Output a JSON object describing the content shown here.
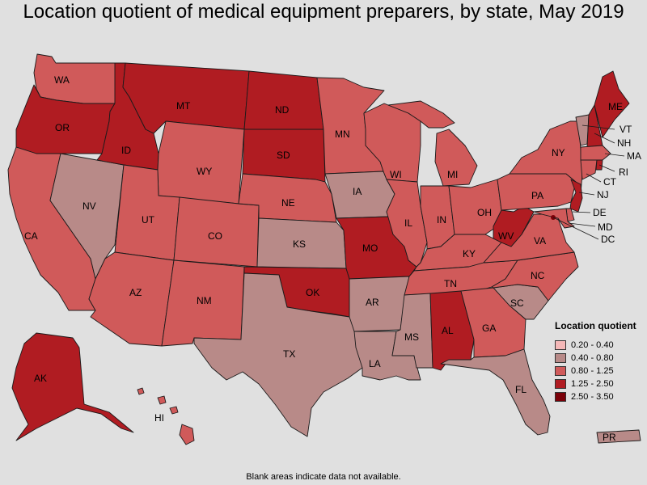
{
  "title": "Location quotient of medical equipment preparers, by state, May 2019",
  "footnote": "Blank areas indicate data not available.",
  "legend": {
    "title": "Location quotient",
    "items": [
      {
        "label": "0.20 - 0.40",
        "color": "#f4b8b8"
      },
      {
        "label": "0.40 - 0.80",
        "color": "#b88a88"
      },
      {
        "label": "0.80 - 1.25",
        "color": "#d05a5a"
      },
      {
        "label": "1.25 - 2.50",
        "color": "#b01c22"
      },
      {
        "label": "2.50 - 3.50",
        "color": "#7a0008"
      }
    ]
  },
  "states": [
    {
      "abbr": "WA",
      "cls": 2
    },
    {
      "abbr": "OR",
      "cls": 3
    },
    {
      "abbr": "CA",
      "cls": 2
    },
    {
      "abbr": "NV",
      "cls": 1
    },
    {
      "abbr": "ID",
      "cls": 3
    },
    {
      "abbr": "MT",
      "cls": 3
    },
    {
      "abbr": "WY",
      "cls": 2
    },
    {
      "abbr": "UT",
      "cls": 2
    },
    {
      "abbr": "AZ",
      "cls": 2
    },
    {
      "abbr": "CO",
      "cls": 2
    },
    {
      "abbr": "NM",
      "cls": 2
    },
    {
      "abbr": "ND",
      "cls": 3
    },
    {
      "abbr": "SD",
      "cls": 3
    },
    {
      "abbr": "NE",
      "cls": 2
    },
    {
      "abbr": "KS",
      "cls": 1
    },
    {
      "abbr": "OK",
      "cls": 3
    },
    {
      "abbr": "TX",
      "cls": 1
    },
    {
      "abbr": "MN",
      "cls": 2
    },
    {
      "abbr": "IA",
      "cls": 1
    },
    {
      "abbr": "MO",
      "cls": 3
    },
    {
      "abbr": "AR",
      "cls": 1
    },
    {
      "abbr": "LA",
      "cls": 1
    },
    {
      "abbr": "WI",
      "cls": 2
    },
    {
      "abbr": "IL",
      "cls": 2
    },
    {
      "abbr": "MI",
      "cls": 2
    },
    {
      "abbr": "IN",
      "cls": 2
    },
    {
      "abbr": "OH",
      "cls": 2
    },
    {
      "abbr": "KY",
      "cls": 2
    },
    {
      "abbr": "TN",
      "cls": 2
    },
    {
      "abbr": "MS",
      "cls": 1
    },
    {
      "abbr": "AL",
      "cls": 3
    },
    {
      "abbr": "GA",
      "cls": 2
    },
    {
      "abbr": "FL",
      "cls": 1
    },
    {
      "abbr": "SC",
      "cls": 1
    },
    {
      "abbr": "NC",
      "cls": 2
    },
    {
      "abbr": "VA",
      "cls": 2
    },
    {
      "abbr": "WV",
      "cls": 3
    },
    {
      "abbr": "PA",
      "cls": 2
    },
    {
      "abbr": "NY",
      "cls": 2
    },
    {
      "abbr": "ME",
      "cls": 3
    },
    {
      "abbr": "VT",
      "cls": 1
    },
    {
      "abbr": "NH",
      "cls": 3
    },
    {
      "abbr": "MA",
      "cls": 2
    },
    {
      "abbr": "RI",
      "cls": 3
    },
    {
      "abbr": "CT",
      "cls": 2
    },
    {
      "abbr": "NJ",
      "cls": 3
    },
    {
      "abbr": "DE",
      "cls": 2
    },
    {
      "abbr": "MD",
      "cls": 2
    },
    {
      "abbr": "DC",
      "cls": 4
    },
    {
      "abbr": "AK",
      "cls": 3
    },
    {
      "abbr": "HI",
      "cls": 2
    },
    {
      "abbr": "PR",
      "cls": 1
    }
  ]
}
